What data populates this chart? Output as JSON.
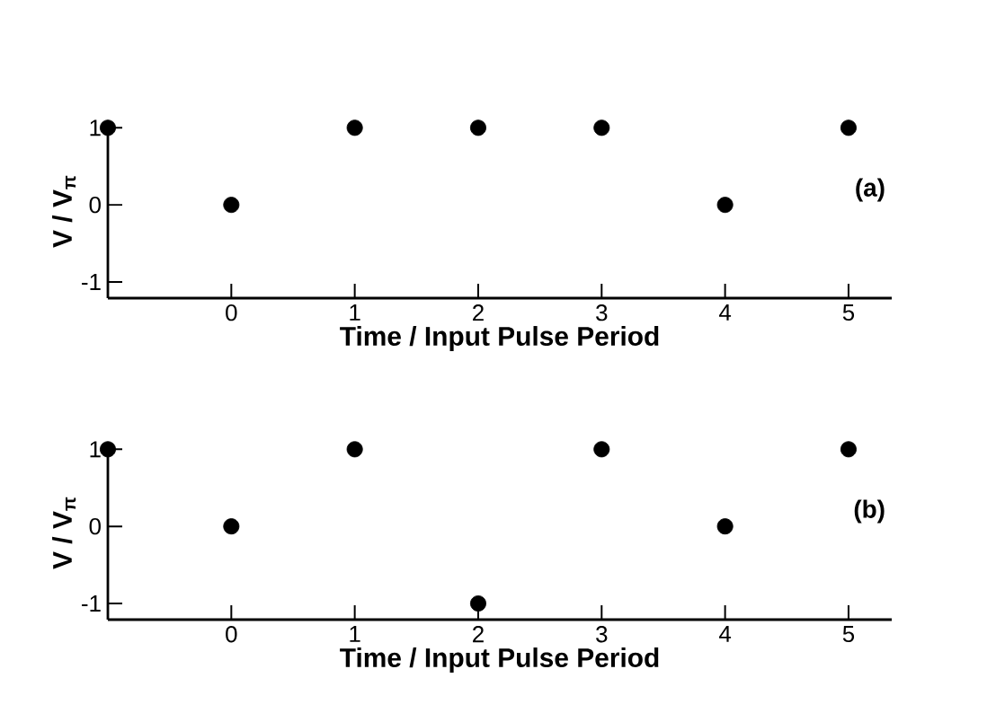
{
  "chart_data": [
    {
      "type": "scatter",
      "title": "(a)",
      "xlabel": "Time / Input Pulse Period",
      "ylabel": "V / V$_{π}$",
      "x": [
        -1,
        0,
        1,
        2,
        3,
        4,
        5
      ],
      "values": [
        1,
        0,
        1,
        1,
        1,
        0,
        1
      ],
      "color": "#000000",
      "marker": "circle",
      "xlim": [
        -1,
        5.35
      ],
      "ylim": [
        -1.21,
        1.05
      ],
      "xticks": [
        0,
        1,
        2,
        3,
        4,
        5
      ],
      "yticks": [
        -1,
        0,
        1
      ]
    },
    {
      "type": "scatter",
      "title": "(b)",
      "xlabel": "Time / Input Pulse Period",
      "ylabel": "V / V$_{π}$",
      "x": [
        -1,
        0,
        1,
        2,
        3,
        4,
        5
      ],
      "values": [
        1,
        0,
        1,
        -1,
        1,
        0,
        1
      ],
      "color": "#000000",
      "marker": "circle",
      "xlim": [
        -1,
        5.35
      ],
      "ylim": [
        -1.21,
        1.05
      ],
      "xticks": [
        0,
        1,
        2,
        3,
        4,
        5
      ],
      "yticks": [
        -1,
        0,
        1
      ]
    }
  ]
}
